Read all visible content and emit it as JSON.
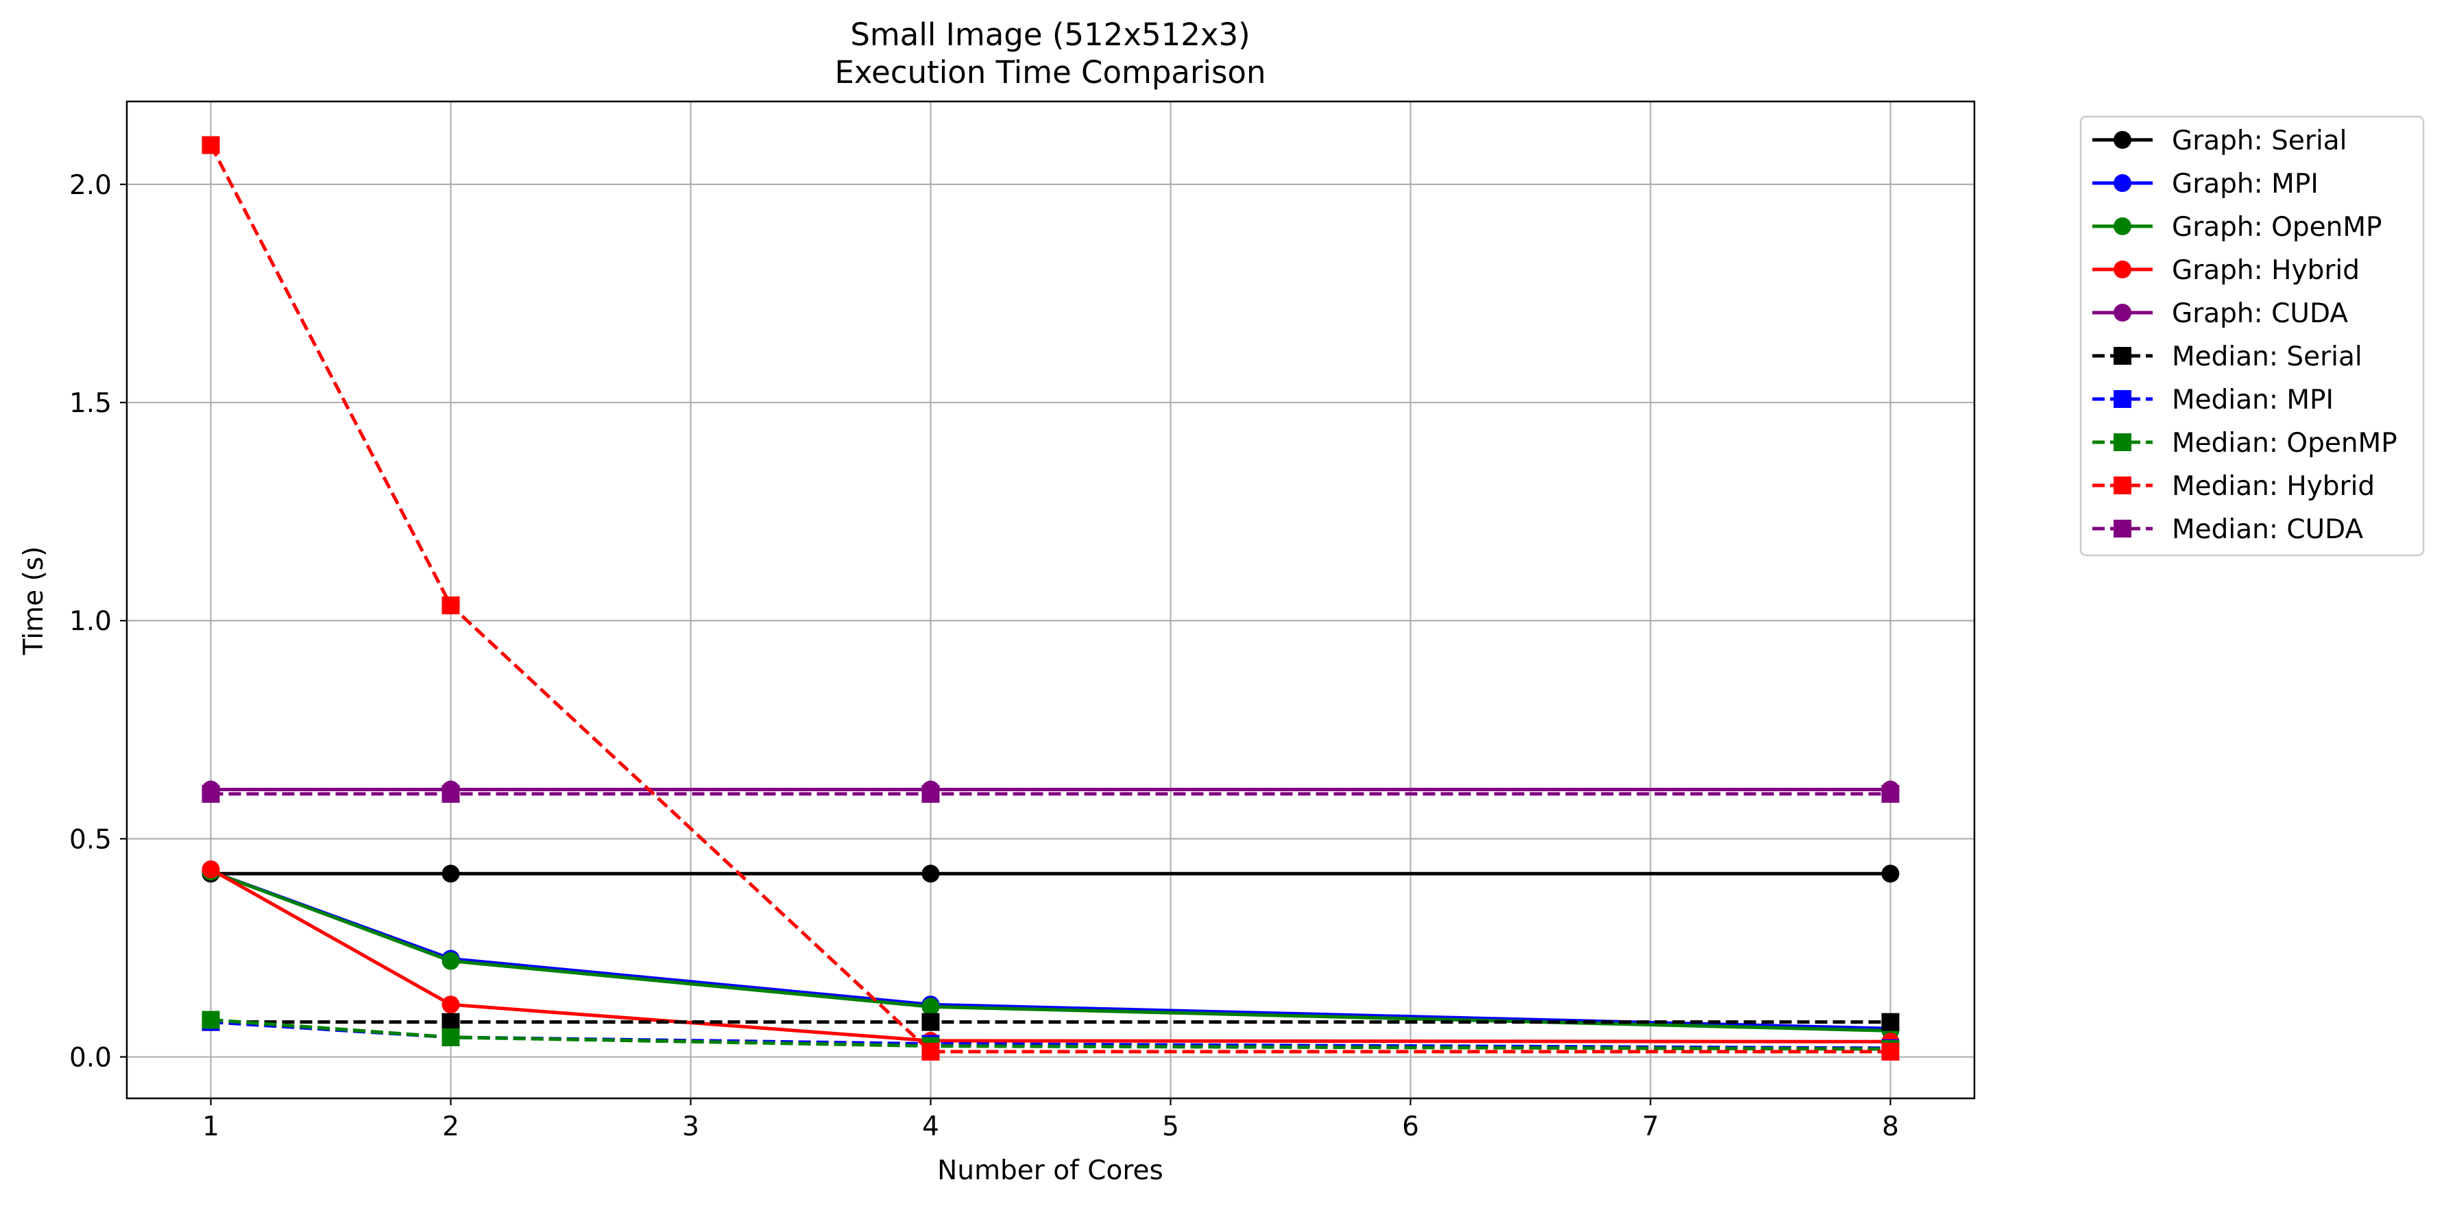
{
  "chart_data": {
    "type": "line",
    "title": "Small Image (512x512x3)",
    "subtitle": "Execution Time Comparison",
    "xlabel": "Number of Cores",
    "ylabel": "Time (s)",
    "xlim": [
      0.65,
      8.35
    ],
    "ylim": [
      -0.095,
      2.19
    ],
    "xticks": [
      1,
      2,
      3,
      4,
      5,
      6,
      7,
      8
    ],
    "yticks": [
      0.0,
      0.5,
      1.0,
      1.5,
      2.0
    ],
    "ytick_labels": [
      "0.0",
      "0.5",
      "1.0",
      "1.5",
      "2.0"
    ],
    "grid": true,
    "legend_position": "outside-right",
    "x": [
      1,
      2,
      4,
      8
    ],
    "series": [
      {
        "name": "Graph: Serial",
        "color": "#000000",
        "linestyle": "solid",
        "marker": "circle",
        "values": [
          0.42,
          0.42,
          0.42,
          0.42
        ]
      },
      {
        "name": "Graph: MPI",
        "color": "#0000ff",
        "linestyle": "solid",
        "marker": "circle",
        "values": [
          0.425,
          0.225,
          0.12,
          0.065
        ]
      },
      {
        "name": "Graph: OpenMP",
        "color": "#008000",
        "linestyle": "solid",
        "marker": "circle",
        "values": [
          0.425,
          0.22,
          0.115,
          0.06
        ]
      },
      {
        "name": "Graph: Hybrid",
        "color": "#ff0000",
        "linestyle": "solid",
        "marker": "circle",
        "values": [
          0.43,
          0.12,
          0.037,
          0.035
        ]
      },
      {
        "name": "Graph: CUDA",
        "color": "#800080",
        "linestyle": "solid",
        "marker": "circle",
        "values": [
          0.613,
          0.613,
          0.613,
          0.613
        ]
      },
      {
        "name": "Median: Serial",
        "color": "#000000",
        "linestyle": "dashed",
        "marker": "square",
        "values": [
          0.08,
          0.08,
          0.08,
          0.08
        ]
      },
      {
        "name": "Median: MPI",
        "color": "#0000ff",
        "linestyle": "dashed",
        "marker": "square",
        "values": [
          0.08,
          0.045,
          0.03,
          0.02
        ]
      },
      {
        "name": "Median: OpenMP",
        "color": "#008000",
        "linestyle": "dashed",
        "marker": "square",
        "values": [
          0.085,
          0.045,
          0.025,
          0.018
        ]
      },
      {
        "name": "Median: Hybrid",
        "color": "#ff0000",
        "linestyle": "dashed",
        "marker": "square",
        "values": [
          2.09,
          1.035,
          0.012,
          0.012
        ]
      },
      {
        "name": "Median: CUDA",
        "color": "#800080",
        "linestyle": "dashed",
        "marker": "square",
        "values": [
          0.603,
          0.603,
          0.603,
          0.603
        ]
      }
    ]
  }
}
